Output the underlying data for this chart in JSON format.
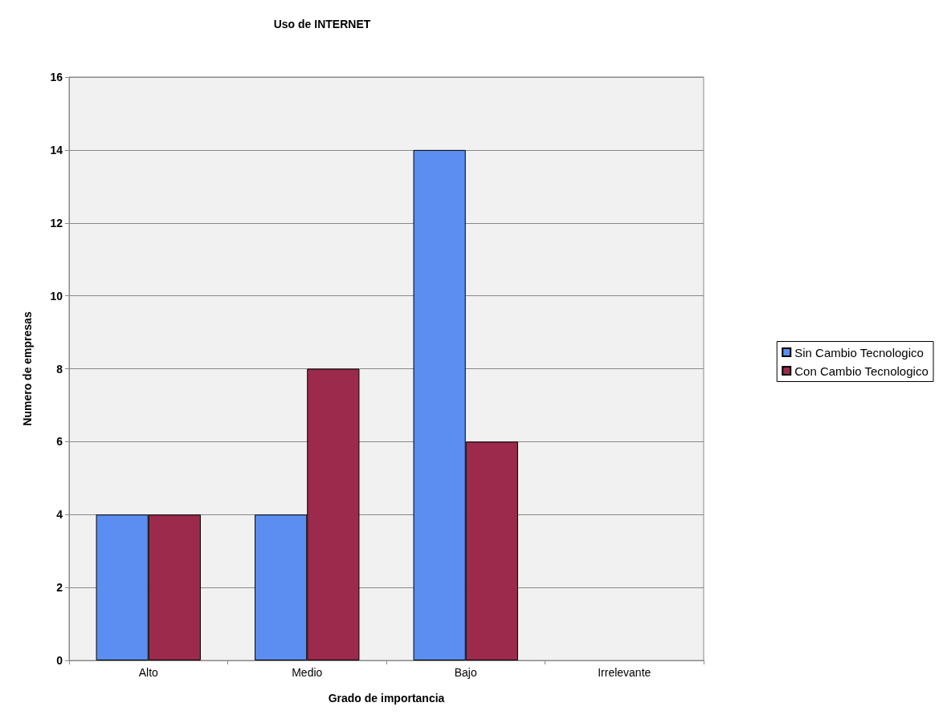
{
  "chart_data": {
    "type": "bar",
    "title": "Uso de INTERNET",
    "xlabel": "Grado de importancia",
    "ylabel": "Numero de empresas",
    "categories": [
      "Alto",
      "Medio",
      "Bajo",
      "Irrelevante"
    ],
    "series": [
      {
        "name": "Sin Cambio Tecnologico",
        "color": "#5b8ef0",
        "values": [
          4,
          4,
          14,
          0
        ]
      },
      {
        "name": "Con Cambio Tecnologico",
        "color": "#9c2a4c",
        "values": [
          4,
          8,
          6,
          0
        ]
      }
    ],
    "ylim": [
      0,
      16
    ],
    "yticks": [
      0,
      2,
      4,
      6,
      8,
      10,
      12,
      14,
      16
    ],
    "grid": "y",
    "legend": "right"
  }
}
